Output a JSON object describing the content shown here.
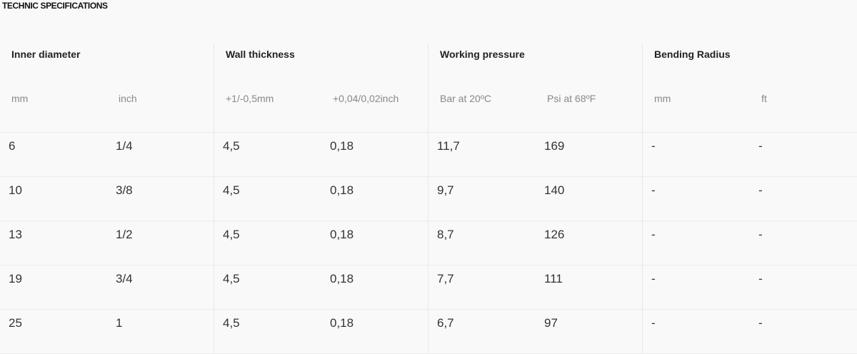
{
  "title": "TECHNIC SPECIFICATIONS",
  "groups": [
    {
      "label": "Inner diameter"
    },
    {
      "label": "Wall thickness"
    },
    {
      "label": "Working pressure"
    },
    {
      "label": "Bending Radius"
    }
  ],
  "subheaders": [
    "mm",
    "inch",
    "+1/-0,5mm",
    "+0,04/0,02inch",
    "Bar at 20ºC",
    "Psi at 68ºF",
    "mm",
    "ft"
  ],
  "rows": [
    [
      "6",
      "1/4",
      "4,5",
      "0,18",
      "11,7",
      "169",
      "-",
      "-"
    ],
    [
      "10",
      "3/8",
      "4,5",
      "0,18",
      "9,7",
      "140",
      "-",
      "-"
    ],
    [
      "13",
      "1/2",
      "4,5",
      "0,18",
      "8,7",
      "126",
      "-",
      "-"
    ],
    [
      "19",
      "3/4",
      "4,5",
      "0,18",
      "7,7",
      "111",
      "-",
      "-"
    ],
    [
      "25",
      "1",
      "4,5",
      "0,18",
      "6,7",
      "97",
      "-",
      "-"
    ]
  ]
}
